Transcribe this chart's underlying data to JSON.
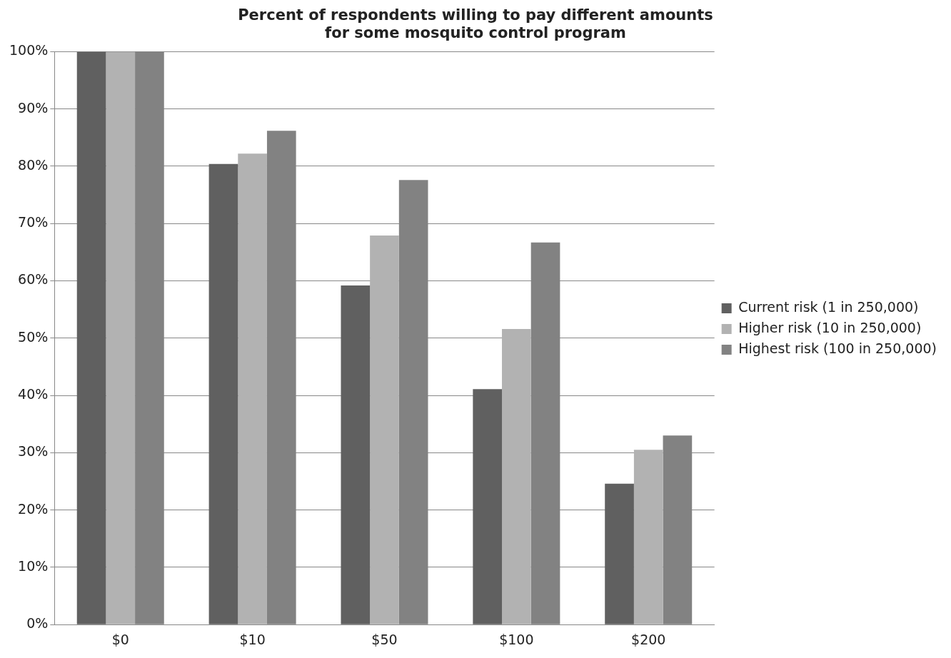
{
  "chart_data": {
    "type": "bar",
    "title": "Percent of respondents willing to pay different amounts for some mosquito control program",
    "categories": [
      "$0",
      "$10",
      "$50",
      "$100",
      "$200"
    ],
    "series": [
      {
        "name": "Current risk (1 in 250,000)",
        "color": "#606060",
        "values": [
          100,
          80.4,
          59.2,
          41.1,
          24.6
        ]
      },
      {
        "name": "Higher risk (10 in 250,000)",
        "color": "#b2b2b2",
        "values": [
          100,
          82.2,
          67.9,
          51.6,
          30.5
        ]
      },
      {
        "name": "Highest risk (100 in 250,000)",
        "color": "#828282",
        "values": [
          100,
          86.2,
          77.6,
          66.7,
          33.0
        ]
      }
    ],
    "ylim": [
      0,
      100
    ],
    "yticks": [
      {
        "value": 0,
        "label": "0%"
      },
      {
        "value": 10,
        "label": "10%"
      },
      {
        "value": 20,
        "label": "20%"
      },
      {
        "value": 30,
        "label": "30%"
      },
      {
        "value": 40,
        "label": "40%"
      },
      {
        "value": 50,
        "label": "50%"
      },
      {
        "value": 60,
        "label": "60%"
      },
      {
        "value": 70,
        "label": "70%"
      },
      {
        "value": 80,
        "label": "80%"
      },
      {
        "value": 90,
        "label": "90%"
      },
      {
        "value": 100,
        "label": "100%"
      }
    ],
    "grid": "y",
    "legend": "right"
  }
}
